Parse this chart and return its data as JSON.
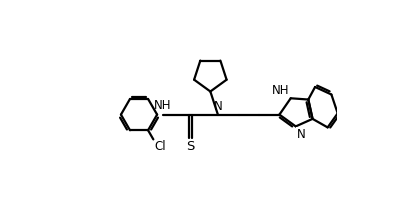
{
  "background": "#ffffff",
  "line_color": "#000000",
  "line_width": 1.6,
  "fig_width": 4.08,
  "fig_height": 2.12,
  "dpi": 100,
  "xlim": [
    0,
    10.2
  ],
  "ylim": [
    2.0,
    8.5
  ]
}
